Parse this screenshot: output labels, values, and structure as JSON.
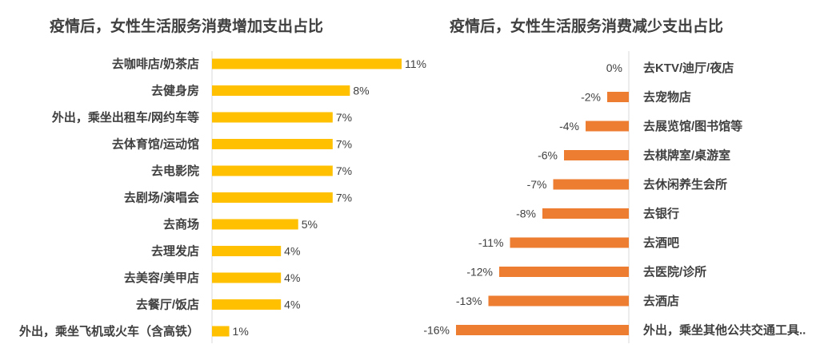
{
  "chart_data": [
    {
      "type": "bar",
      "orientation": "horizontal",
      "title": "疫情后，女性生活服务消费增加支出占比",
      "categories": [
        "去咖啡店/奶茶店",
        "去健身房",
        "外出，乘坐出租车/网约车等",
        "去体育馆/运动馆",
        "去电影院",
        "去剧场/演唱会",
        "去商场",
        "去理发店",
        "去美容/美甲店",
        "去餐厅/饭店",
        "外出，乘坐飞机或火车（含高铁）"
      ],
      "values": [
        11,
        8,
        7,
        7,
        7,
        7,
        5,
        4,
        4,
        4,
        1
      ],
      "value_labels": [
        "11%",
        "8%",
        "7%",
        "7%",
        "7%",
        "7%",
        "5%",
        "4%",
        "4%",
        "4%",
        "1%"
      ],
      "bar_color": "#FFC000",
      "xlim": [
        0,
        11
      ],
      "grid": false
    },
    {
      "type": "bar",
      "orientation": "horizontal",
      "title": "疫情后，女性生活服务消费减少支出占比",
      "categories": [
        "去KTV/迪厅/夜店",
        "去宠物店",
        "去展览馆/图书馆等",
        "去棋牌室/桌游室",
        "去休闲养生会所",
        "去银行",
        "去酒吧",
        "去医院/诊所",
        "去酒店",
        "外出，乘坐其他公共交通工具.."
      ],
      "values": [
        0,
        -2,
        -4,
        -6,
        -7,
        -8,
        -11,
        -12,
        -13,
        -16
      ],
      "value_labels": [
        "0%",
        "-2%",
        "-4%",
        "-6%",
        "-7%",
        "-8%",
        "-11%",
        "-12%",
        "-13%",
        "-16%"
      ],
      "bar_color": "#ED7D31",
      "xlim": [
        -16,
        0
      ],
      "grid": false
    }
  ]
}
